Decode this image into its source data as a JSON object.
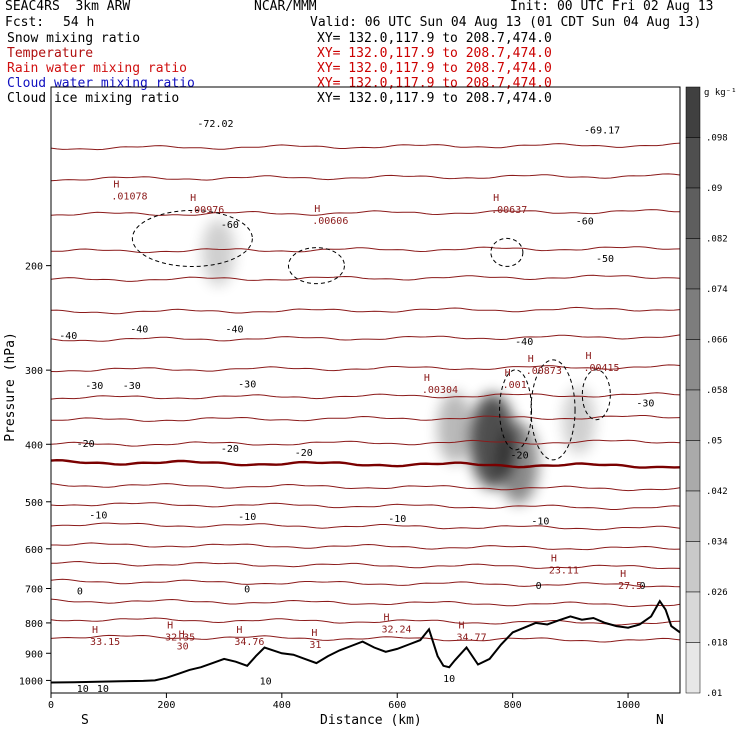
{
  "header": {
    "model": "SEAC4RS  3km ARW",
    "institution": "NCAR/MMM",
    "init": "Init: 00 UTC Fri 02 Aug 13",
    "fcst_label": "Fcst:",
    "fcst_value": "54 h",
    "valid": "Valid: 06 UTC Sun 04 Aug 13 (01 CDT Sun 04 Aug 13)"
  },
  "fields": [
    {
      "name": "Snow mixing ratio",
      "xy": "XY= 132.0,117.9 to 208.7,474.0",
      "color": "#000000"
    },
    {
      "name": "Temperature",
      "xy": "XY= 132.0,117.9 to 208.7,474.0",
      "color": "#b01010"
    },
    {
      "name": "Rain water mixing ratio",
      "xy": "XY= 132.0,117.9 to 208.7,474.0",
      "color": "#d01010"
    },
    {
      "name": "Cloud water mixing ratio",
      "xy": "XY= 132.0,117.9 to 208.7,474.0",
      "color": "#1010c0"
    },
    {
      "name": "Cloud ice mixing ratio",
      "xy": "XY= 132.0,117.9 to 208.7,474.0",
      "color": "#000000"
    }
  ],
  "colors": {
    "temperature": "#8b1a1a",
    "zero_isotherm": "#7a0000",
    "terrain": "#000000",
    "shading": "#000000"
  },
  "chart_data": {
    "type": "heatmap",
    "xlabel": "Distance (km)",
    "ylabel": "Pressure (hPa)",
    "xlim": [
      0,
      1090
    ],
    "ylim": [
      1050,
      100
    ],
    "y_scale": "log",
    "x_ticks": [
      "0",
      "200",
      "400",
      "600",
      "800",
      "1000"
    ],
    "y_ticks": [
      "200",
      "300",
      "400",
      "500",
      "600",
      "700",
      "800",
      "900",
      "1000"
    ],
    "x_ends": {
      "left": "S",
      "right": "N"
    },
    "colorbar": {
      "unit": "g kg⁻¹",
      "labels": [
        ".098",
        ".09",
        ".082",
        ".074",
        ".066",
        ".058",
        ".05",
        ".042",
        ".034",
        ".026",
        ".018",
        ".01"
      ],
      "values": [
        0.098,
        0.09,
        0.082,
        0.074,
        0.066,
        0.058,
        0.05,
        0.042,
        0.034,
        0.026,
        0.018,
        0.01
      ]
    },
    "isotherms": [
      {
        "temp": -70,
        "p": 126
      },
      {
        "temp": -60,
        "p": 142
      },
      {
        "temp": -50,
        "p": 163
      },
      {
        "temp": -40,
        "p": 188
      },
      {
        "temp": -35,
        "p": 210
      },
      {
        "temp": -30,
        "p": 238
      },
      {
        "temp": -25,
        "p": 265
      },
      {
        "temp": -20,
        "p": 298
      },
      {
        "temp": -15,
        "p": 332
      },
      {
        "temp": -10,
        "p": 362
      },
      {
        "temp": -5,
        "p": 398
      },
      {
        "temp": 0,
        "p": 432
      },
      {
        "temp": 5,
        "p": 472
      },
      {
        "temp": 10,
        "p": 508
      },
      {
        "temp": 15,
        "p": 550
      },
      {
        "temp": 20,
        "p": 595
      },
      {
        "temp": 25,
        "p": 640
      },
      {
        "temp": 30,
        "p": 686
      },
      {
        "temp": 35,
        "p": 740
      },
      {
        "temp": 40,
        "p": 795
      },
      {
        "temp": 45,
        "p": 850
      }
    ],
    "temperature_labels": [
      {
        "text": "-72.02",
        "x": 285,
        "p": 115
      },
      {
        "text": "-69.17",
        "x": 955,
        "p": 118
      },
      {
        "text": "-60",
        "x": 310,
        "p": 170
      },
      {
        "text": "-60",
        "x": 925,
        "p": 168
      },
      {
        "text": "-50",
        "x": 960,
        "p": 194
      },
      {
        "text": "-40",
        "x": 30,
        "p": 262
      },
      {
        "text": "-40",
        "x": 153,
        "p": 255
      },
      {
        "text": "-40",
        "x": 318,
        "p": 255
      },
      {
        "text": "-40",
        "x": 820,
        "p": 268
      },
      {
        "text": "-30",
        "x": 75,
        "p": 318
      },
      {
        "text": "-30",
        "x": 140,
        "p": 318
      },
      {
        "text": "-30",
        "x": 340,
        "p": 316
      },
      {
        "text": "-30",
        "x": 1030,
        "p": 340
      },
      {
        "text": "-20",
        "x": 60,
        "p": 398
      },
      {
        "text": "-20",
        "x": 310,
        "p": 406
      },
      {
        "text": "-20",
        "x": 438,
        "p": 412
      },
      {
        "text": "-20",
        "x": 812,
        "p": 416
      },
      {
        "text": "-10",
        "x": 82,
        "p": 525
      },
      {
        "text": "-10",
        "x": 340,
        "p": 528
      },
      {
        "text": "-10",
        "x": 600,
        "p": 532
      },
      {
        "text": "-10",
        "x": 848,
        "p": 538
      },
      {
        "text": "0",
        "x": 50,
        "p": 705
      },
      {
        "text": "0",
        "x": 340,
        "p": 700
      },
      {
        "text": "0",
        "x": 845,
        "p": 690
      },
      {
        "text": "0",
        "x": 1025,
        "p": 690
      },
      {
        "text": "10",
        "x": 55,
        "p": 1030
      },
      {
        "text": "10",
        "x": 90,
        "p": 1030
      },
      {
        "text": "10",
        "x": 372,
        "p": 1000
      },
      {
        "text": "10",
        "x": 690,
        "p": 990
      }
    ],
    "highs": [
      {
        "value": ".01078",
        "x": 122,
        "p": 150
      },
      {
        "value": ".00976",
        "x": 255,
        "p": 158
      },
      {
        "value": ".00606",
        "x": 470,
        "p": 165
      },
      {
        "value": ".00637",
        "x": 780,
        "p": 158
      },
      {
        "value": ".00304",
        "x": 660,
        "p": 318
      },
      {
        "value": ".00873",
        "x": 840,
        "p": 295
      },
      {
        "value": ".001",
        "x": 800,
        "p": 312
      },
      {
        "value": ".00415",
        "x": 940,
        "p": 292
      },
      {
        "value": "23.11",
        "x": 880,
        "p": 640
      },
      {
        "value": "27.5",
        "x": 1000,
        "p": 680
      },
      {
        "value": "32.24",
        "x": 590,
        "p": 805
      },
      {
        "value": "34.77",
        "x": 720,
        "p": 830
      },
      {
        "value": "33.15",
        "x": 85,
        "p": 845
      },
      {
        "value": "32.35",
        "x": 215,
        "p": 830
      },
      {
        "value": "34.76",
        "x": 335,
        "p": 845
      },
      {
        "value": "31",
        "x": 465,
        "p": 855
      },
      {
        "value": "30",
        "x": 235,
        "p": 860
      }
    ],
    "terrain": {
      "x": [
        0,
        40,
        80,
        120,
        160,
        180,
        200,
        220,
        240,
        260,
        280,
        300,
        320,
        340,
        355,
        370,
        385,
        400,
        420,
        440,
        460,
        480,
        500,
        520,
        540,
        560,
        580,
        600,
        620,
        640,
        655,
        670,
        680,
        690,
        700,
        720,
        740,
        760,
        780,
        800,
        820,
        840,
        860,
        880,
        900,
        920,
        940,
        960,
        980,
        1000,
        1020,
        1040,
        1055,
        1065,
        1075,
        1090
      ],
      "p": [
        1008,
        1007,
        1005,
        1003,
        1002,
        1000,
        990,
        975,
        960,
        950,
        935,
        920,
        930,
        945,
        910,
        880,
        890,
        900,
        905,
        920,
        935,
        910,
        890,
        875,
        860,
        880,
        895,
        885,
        870,
        855,
        820,
        910,
        945,
        950,
        925,
        880,
        940,
        920,
        870,
        830,
        815,
        800,
        805,
        792,
        780,
        790,
        785,
        800,
        810,
        815,
        805,
        780,
        735,
        760,
        810,
        830
      ]
    },
    "series": [
      {
        "name": "Snow mixing ratio",
        "type": "shaded",
        "cores": [
          [
            700,
            375,
            0.03
          ],
          [
            765,
            395,
            0.075
          ],
          [
            810,
            430,
            0.05
          ],
          [
            290,
            190,
            0.02
          ],
          [
            915,
            365,
            0.02
          ]
        ]
      },
      {
        "name": "Cloud ice mixing ratio",
        "type": "dashed_contours"
      }
    ]
  }
}
